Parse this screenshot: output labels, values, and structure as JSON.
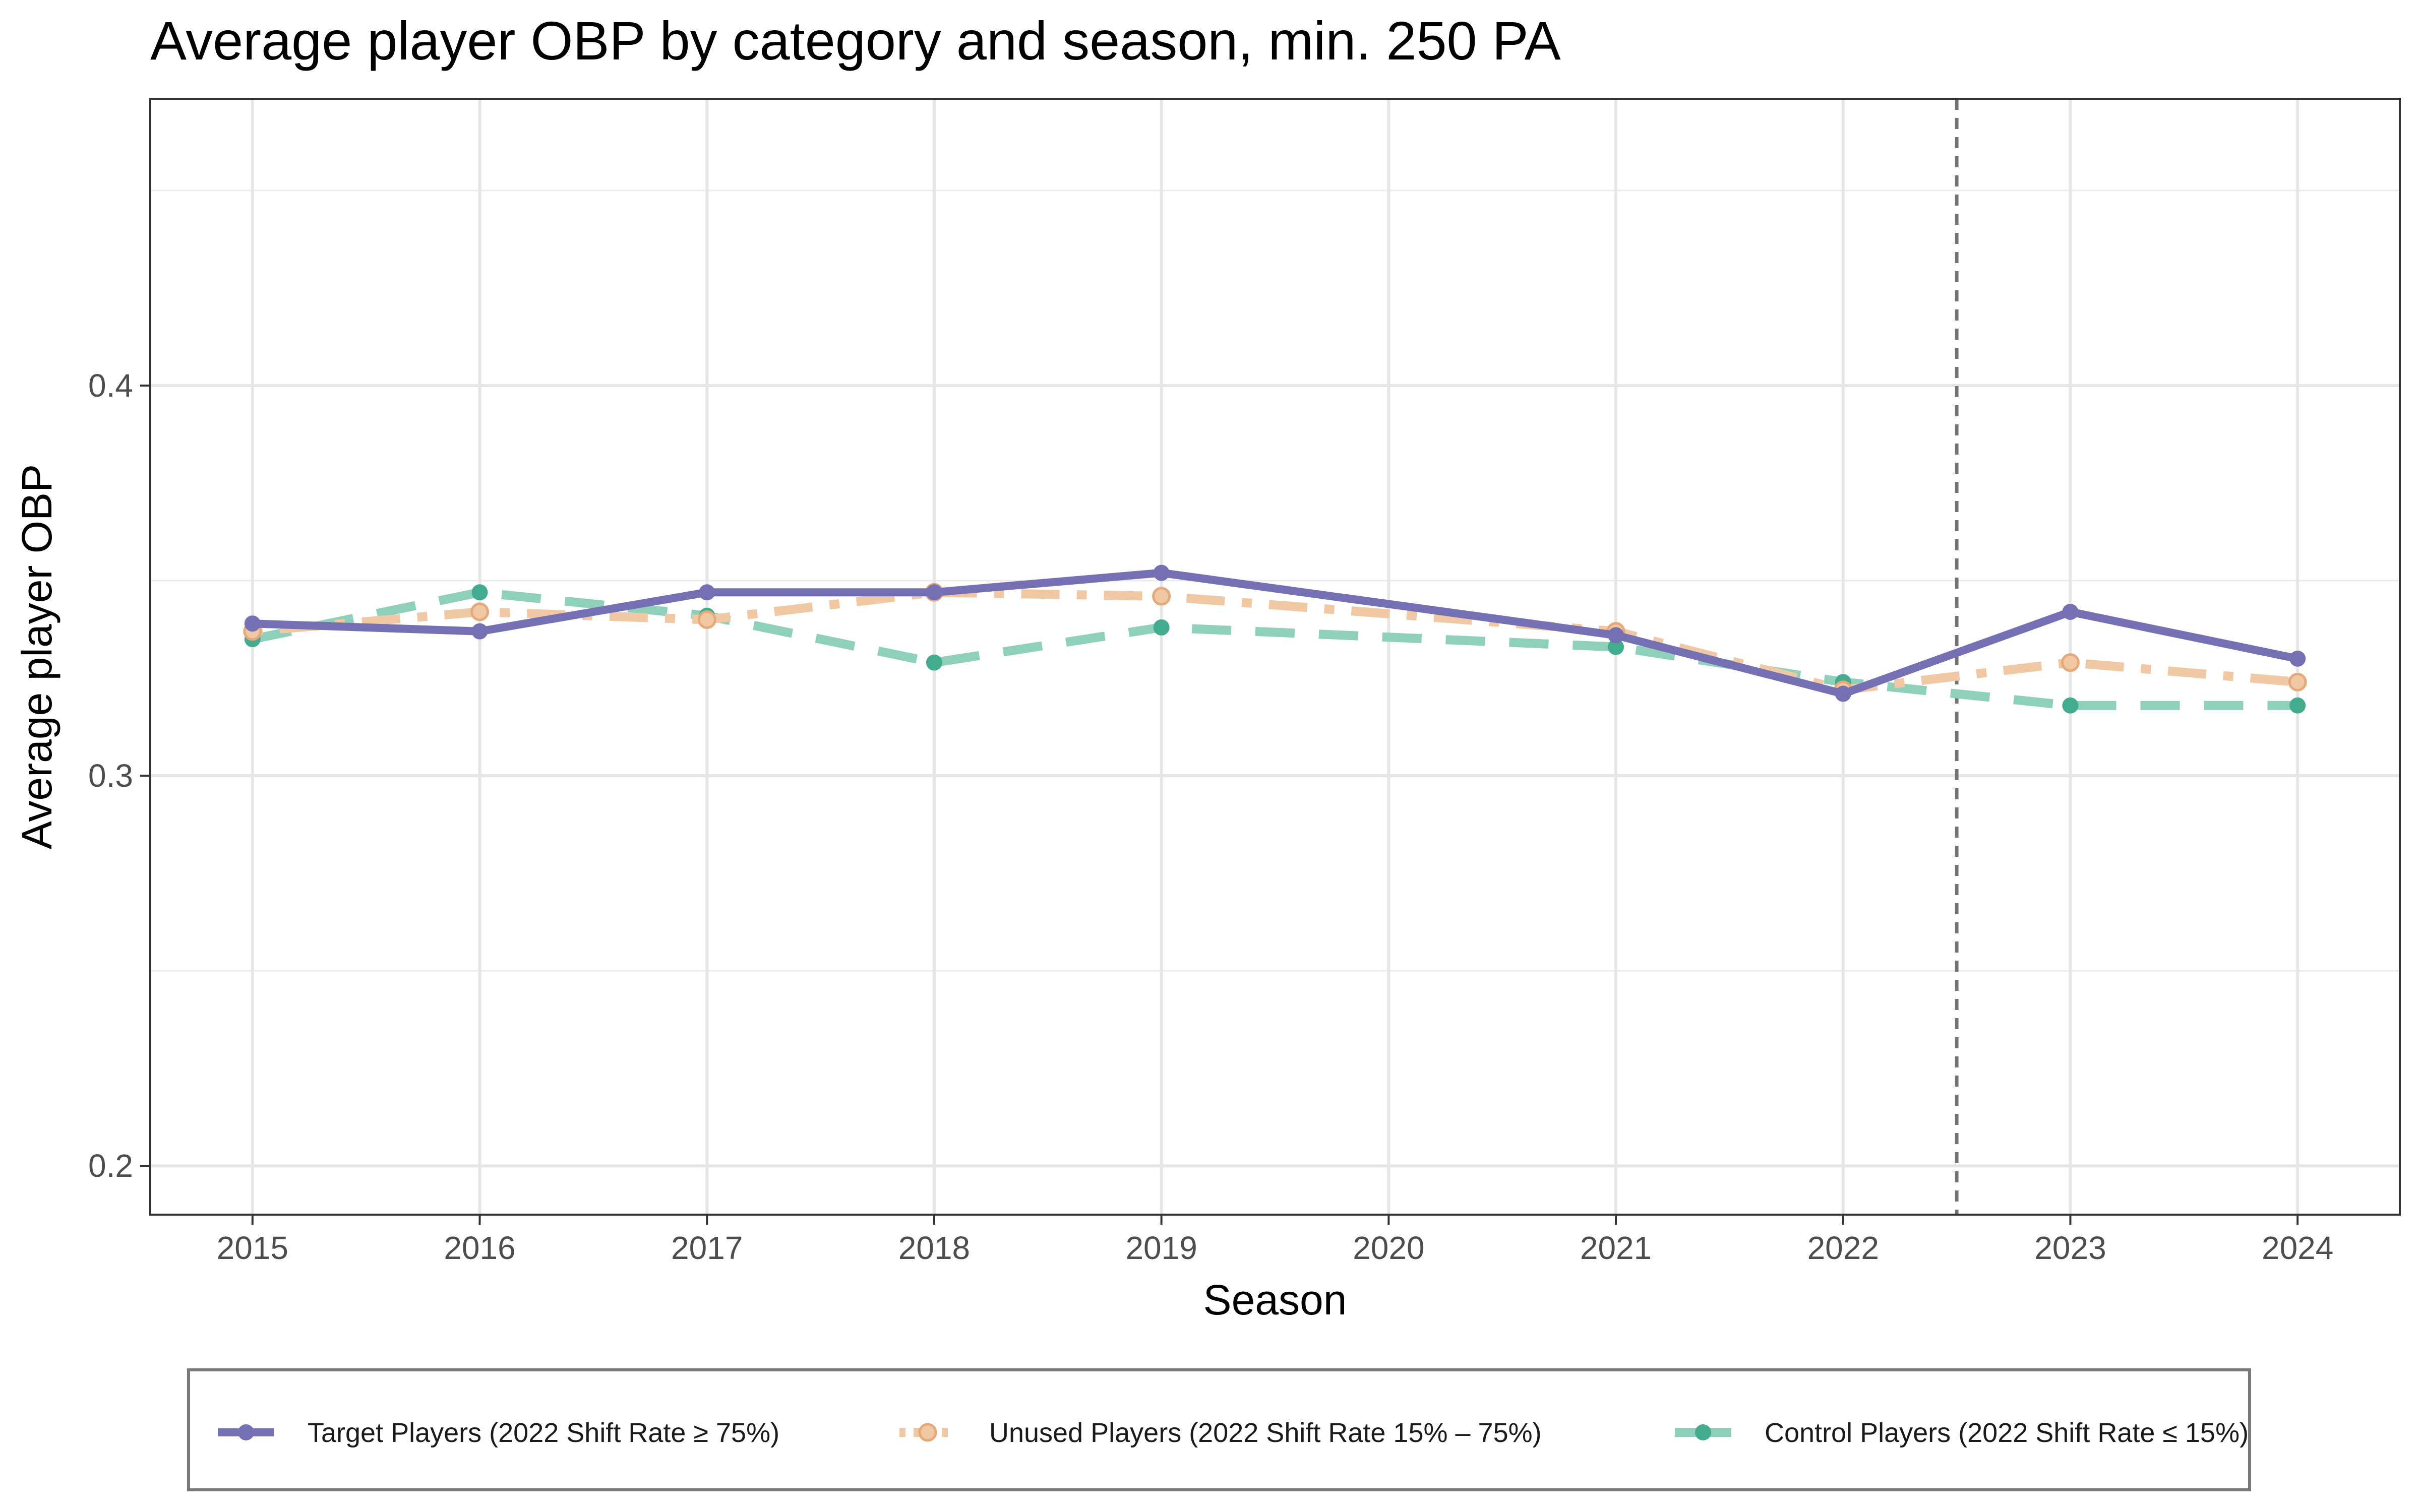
{
  "chart_data": {
    "type": "line",
    "title": "Average player OBP by category and season, min. 250 PA",
    "xlabel": "Season",
    "ylabel": "Average player OBP",
    "x": [
      2015,
      2016,
      2017,
      2018,
      2019,
      2020,
      2021,
      2022,
      2023,
      2024
    ],
    "x_tick_labels": [
      "2015",
      "2016",
      "2017",
      "2018",
      "2019",
      "2020",
      "2021",
      "2022",
      "2023",
      "2024"
    ],
    "xlim": [
      2014.55,
      2024.45
    ],
    "ylim": [
      0.1875,
      0.4735
    ],
    "y_ticks": [
      0.2,
      0.3,
      0.4
    ],
    "y_tick_labels": [
      "0.2",
      "0.3",
      "0.4"
    ],
    "grid": true,
    "legend_position": "bottom",
    "reference_line": {
      "orientation": "vertical",
      "x": 2022.5,
      "style": "dashed",
      "color": "#737373"
    },
    "series": [
      {
        "name": "Target Players (2022 Shift Rate ≥ 75%)",
        "color": "#7570b3",
        "line_style": "solid",
        "x": [
          2015,
          2016,
          2017,
          2018,
          2019,
          2021,
          2022,
          2023,
          2024
        ],
        "values": [
          0.339,
          0.337,
          0.347,
          0.347,
          0.352,
          0.336,
          0.321,
          0.342,
          0.33
        ]
      },
      {
        "name": "Unused Players (2022 Shift Rate 15% – 75%)",
        "color": "#f0c8a4",
        "marker_color": "#e6a97a",
        "line_style": "dotdash",
        "x": [
          2015,
          2016,
          2017,
          2018,
          2019,
          2021,
          2022,
          2023,
          2024
        ],
        "values": [
          0.337,
          0.342,
          0.34,
          0.347,
          0.346,
          0.337,
          0.322,
          0.329,
          0.324
        ]
      },
      {
        "name": "Control Players (2022 Shift Rate ≤ 15%)",
        "color": "#8fd0ba",
        "marker_color": "#43ab8e",
        "line_style": "dashed",
        "x": [
          2015,
          2016,
          2017,
          2018,
          2019,
          2021,
          2022,
          2023,
          2024
        ],
        "values": [
          0.335,
          0.347,
          0.341,
          0.329,
          0.338,
          0.333,
          0.324,
          0.318,
          0.318
        ]
      }
    ]
  }
}
